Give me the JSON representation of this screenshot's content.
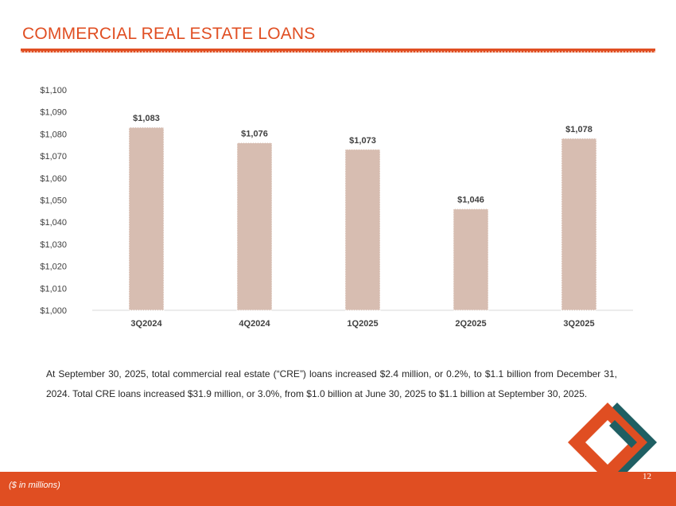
{
  "header": {
    "title": "COMMERCIAL REAL ESTATE LOANS"
  },
  "chart_data": {
    "type": "bar",
    "title": "",
    "xlabel": "",
    "ylabel": "",
    "categories": [
      "3Q2024",
      "4Q2024",
      "1Q2025",
      "2Q2025",
      "3Q2025"
    ],
    "values": [
      1083,
      1076,
      1073,
      1046,
      1078
    ],
    "data_labels": [
      "$1,083",
      "$1,076",
      "$1,073",
      "$1,046",
      "$1,078"
    ],
    "y_ticks": [
      "$1,000",
      "$1,010",
      "$1,020",
      "$1,030",
      "$1,040",
      "$1,050",
      "$1,060",
      "$1,070",
      "$1,080",
      "$1,090",
      "$1,100"
    ],
    "ylim": [
      1000,
      1100
    ],
    "grid": false,
    "bar_color": "#d7bdb1"
  },
  "body": {
    "paragraph": "At September 30, 2025, total commercial real estate (“CRE”) loans increased $2.4 million, or 0.2%, to $1.1 billion from December 31, 2024. Total CRE loans increased $31.9 million, or 3.0%, from $1.0 billion at June 30, 2025 to $1.1 billion at September 30, 2025."
  },
  "footer": {
    "note": "($ in millions)",
    "page_number": "12"
  },
  "colors": {
    "accent": "#e04e22",
    "logo_teal": "#1f5f63",
    "logo_orange": "#e04e22"
  }
}
